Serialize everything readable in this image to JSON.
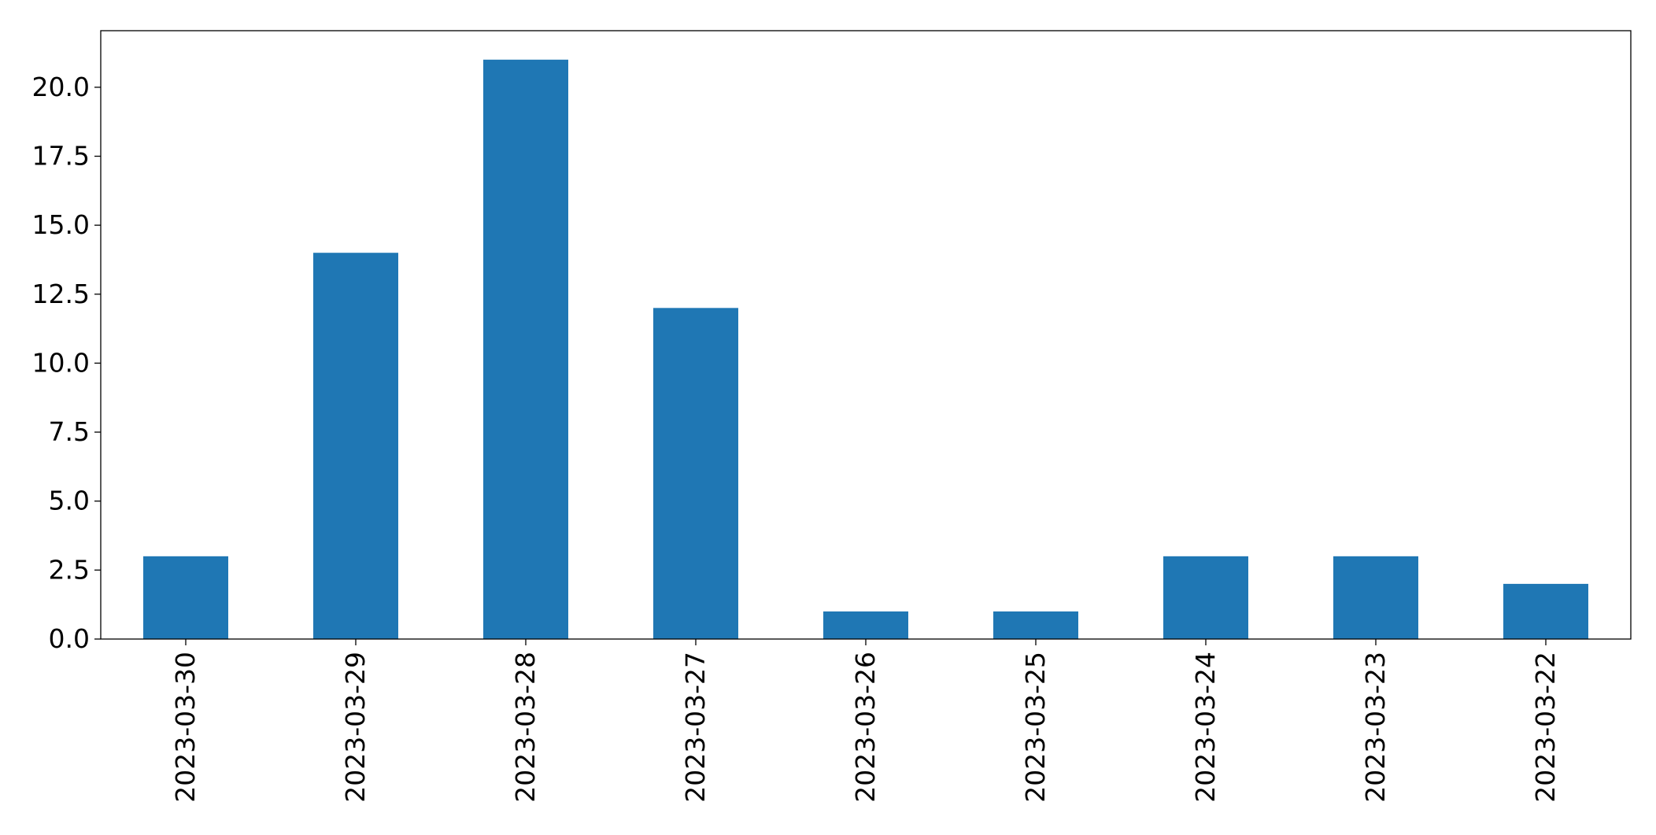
{
  "chart_data": {
    "type": "bar",
    "title": "",
    "xlabel": "",
    "ylabel": "",
    "categories": [
      "2023-03-30",
      "2023-03-29",
      "2023-03-28",
      "2023-03-27",
      "2023-03-26",
      "2023-03-25",
      "2023-03-24",
      "2023-03-23",
      "2023-03-22"
    ],
    "values": [
      3,
      14,
      21,
      12,
      1,
      1,
      3,
      3,
      2
    ],
    "ylim": [
      0,
      22.05
    ],
    "yticks": [
      0.0,
      2.5,
      5.0,
      7.5,
      10.0,
      12.5,
      15.0,
      17.5,
      20.0
    ],
    "ytick_labels": [
      "0.0",
      "2.5",
      "5.0",
      "7.5",
      "10.0",
      "12.5",
      "15.0",
      "17.5",
      "20.0"
    ],
    "grid": false,
    "legend": null,
    "bar_color": "#1f77b4"
  }
}
